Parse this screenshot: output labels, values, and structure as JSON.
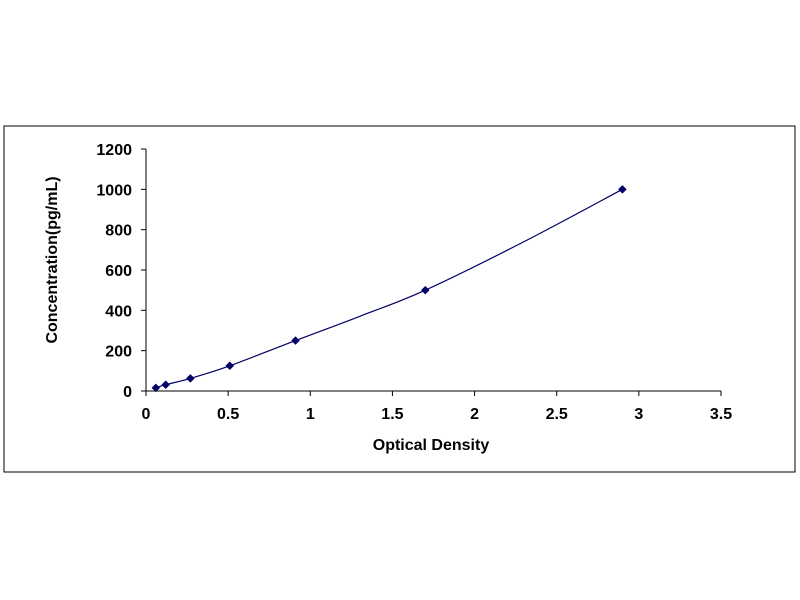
{
  "chart_data": {
    "type": "scatter",
    "title": "",
    "xlabel": "Optical Density",
    "ylabel": "Concentration(pg/mL)",
    "xlim": [
      0,
      3.5
    ],
    "ylim": [
      0,
      1200
    ],
    "x_ticks": [
      0,
      0.5,
      1,
      1.5,
      2,
      2.5,
      3,
      3.5
    ],
    "x_tick_labels": [
      "0",
      "0.5",
      "1",
      "1.5",
      "2",
      "2.5",
      "3",
      "3.5"
    ],
    "y_ticks": [
      0,
      200,
      400,
      600,
      800,
      1000,
      1200
    ],
    "y_tick_labels": [
      "0",
      "200",
      "400",
      "600",
      "800",
      "1000",
      "1200"
    ],
    "grid": false,
    "legend": "none",
    "series": [
      {
        "points": [
          {
            "x": 0.06,
            "y": 15.6
          },
          {
            "x": 0.12,
            "y": 31.2
          },
          {
            "x": 0.27,
            "y": 62.5
          },
          {
            "x": 0.51,
            "y": 125
          },
          {
            "x": 0.91,
            "y": 250
          },
          {
            "x": 1.7,
            "y": 500
          },
          {
            "x": 2.9,
            "y": 1000
          }
        ],
        "curve": [
          {
            "x": 0.06,
            "y": 15.6
          },
          {
            "x": 0.12,
            "y": 31.2
          },
          {
            "x": 0.27,
            "y": 62.5
          },
          {
            "x": 0.51,
            "y": 125
          },
          {
            "x": 0.91,
            "y": 250
          },
          {
            "x": 1.3,
            "y": 370
          },
          {
            "x": 1.7,
            "y": 500
          },
          {
            "x": 2.3,
            "y": 740
          },
          {
            "x": 2.9,
            "y": 1000
          }
        ],
        "color": "#000066",
        "line_color": "#000066"
      }
    ]
  }
}
